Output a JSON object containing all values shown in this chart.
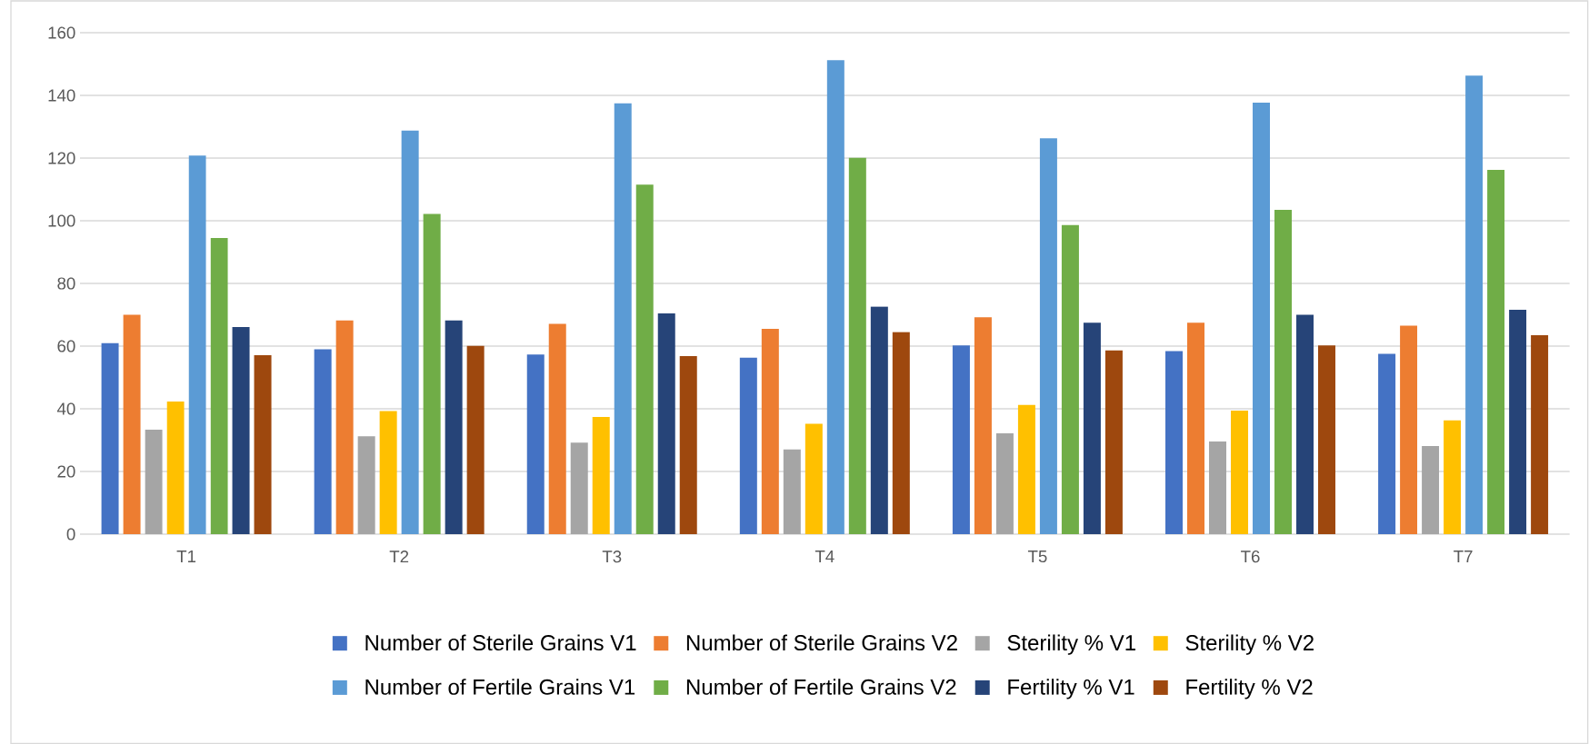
{
  "chart_data": {
    "type": "bar",
    "categories": [
      "T1",
      "T2",
      "T3",
      "T4",
      "T5",
      "T6",
      "T7"
    ],
    "series": [
      {
        "name": "Number of Sterile Grains V1",
        "color": "#4472c4",
        "values": [
          61,
          59,
          57.3,
          56.3,
          60.2,
          58.4,
          57.5
        ]
      },
      {
        "name": "Number of Sterile Grains V2",
        "color": "#ed7d31",
        "values": [
          70,
          68.2,
          67.1,
          65.5,
          69.2,
          67.5,
          66.5
        ]
      },
      {
        "name": "Sterility % V1",
        "color": "#a5a5a5",
        "values": [
          33.3,
          31.2,
          29.2,
          27,
          32.2,
          29.6,
          28.1
        ]
      },
      {
        "name": "Sterility % V2",
        "color": "#ffc000",
        "values": [
          42.3,
          39.3,
          37.4,
          35.2,
          41.2,
          39.4,
          36.3
        ]
      },
      {
        "name": "Number of Fertile Grains V1",
        "color": "#5b9bd5",
        "values": [
          120.8,
          128.8,
          137.5,
          151.2,
          126.3,
          137.7,
          146.3
        ]
      },
      {
        "name": "Number of Fertile Grains V2",
        "color": "#70ad47",
        "values": [
          94.5,
          102.2,
          111.5,
          120.1,
          98.6,
          103.5,
          116.2
        ]
      },
      {
        "name": "Fertility % V1",
        "color": "#264478",
        "values": [
          66.1,
          68.2,
          70.4,
          72.6,
          67.5,
          70,
          71.6
        ]
      },
      {
        "name": "Fertility % V2",
        "color": "#9e480e",
        "values": [
          57.1,
          60.1,
          56.8,
          64.5,
          58.6,
          60.2,
          63.5
        ]
      }
    ],
    "ylim": [
      0,
      160
    ],
    "yticks": [
      0,
      20,
      40,
      60,
      80,
      100,
      120,
      140,
      160
    ],
    "grid": "y",
    "legend": "bottom"
  }
}
